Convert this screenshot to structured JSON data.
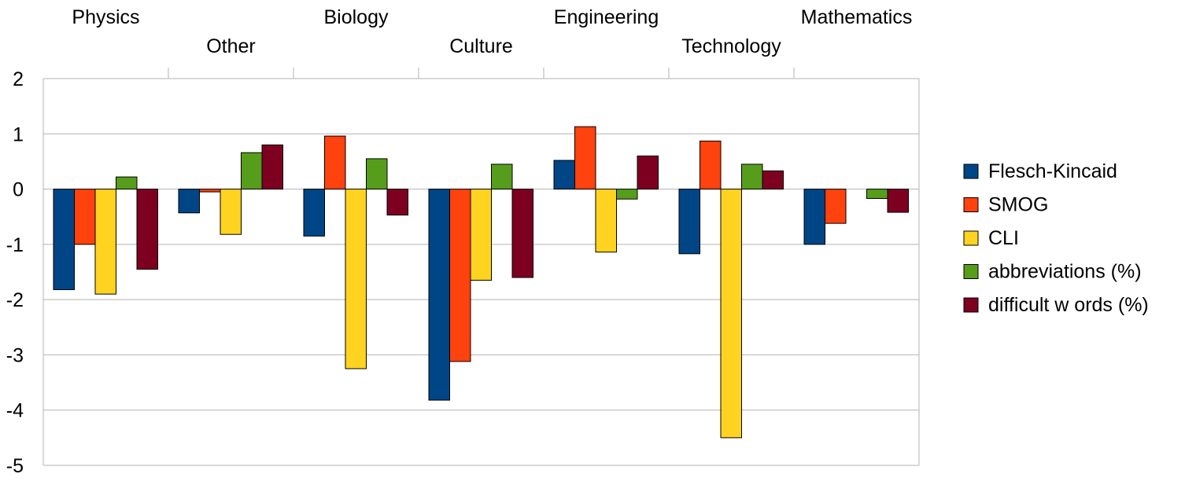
{
  "chart_data": {
    "type": "bar",
    "title": "",
    "xlabel": "",
    "ylabel": "",
    "categories": [
      "Physics",
      "Other",
      "Biology",
      "Culture",
      "Engineering",
      "Technology",
      "Mathematics"
    ],
    "ylim": [
      -5,
      2
    ],
    "yticks": [
      "2",
      "1",
      "0",
      "-1",
      "-2",
      "-3",
      "-4",
      "-5"
    ],
    "grid": true,
    "legend_position": "right",
    "category_axis_position": "top",
    "series": [
      {
        "name": "Flesch-Kincaid",
        "color": "#004586",
        "values": [
          -1.82,
          -0.43,
          -0.85,
          -3.82,
          0.52,
          -1.17,
          -1.0
        ]
      },
      {
        "name": "SMOG",
        "color": "#ff420e",
        "values": [
          -1.0,
          -0.05,
          0.96,
          -3.12,
          1.13,
          0.87,
          -0.62
        ]
      },
      {
        "name": "CLI",
        "color": "#ffd320",
        "values": [
          -1.9,
          -0.82,
          -3.25,
          -1.65,
          -1.14,
          -4.5,
          0
        ]
      },
      {
        "name": "abbreviations (%)",
        "color": "#579d1c",
        "values": [
          0.22,
          0.66,
          0.55,
          0.45,
          -0.18,
          0.45,
          -0.17
        ]
      },
      {
        "name": "difficult w ords (%)",
        "color": "#7e0021",
        "values": [
          -1.45,
          0.8,
          -0.47,
          -1.6,
          0.6,
          0.33,
          -0.42
        ]
      }
    ]
  }
}
